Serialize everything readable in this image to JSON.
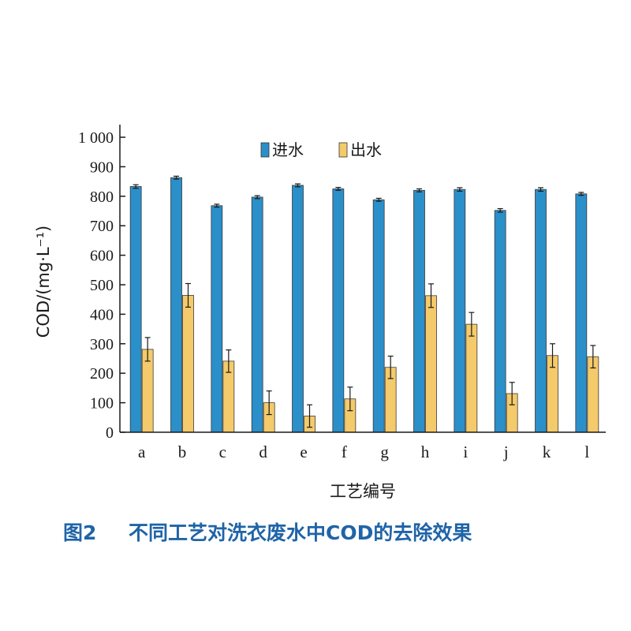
{
  "chart_data": {
    "type": "bar",
    "categories": [
      "a",
      "b",
      "c",
      "d",
      "e",
      "f",
      "g",
      "h",
      "i",
      "j",
      "k",
      "l"
    ],
    "series": [
      {
        "name": "进水",
        "color": "#2b8fc9",
        "values": [
          833,
          863,
          768,
          797,
          837,
          825,
          788,
          820,
          823,
          752,
          823,
          808
        ],
        "errors": [
          6,
          5,
          5,
          5,
          5,
          5,
          5,
          5,
          6,
          6,
          6,
          5
        ]
      },
      {
        "name": "出水",
        "color": "#f4ca6a",
        "values": [
          281,
          464,
          241,
          100,
          55,
          113,
          220,
          463,
          366,
          131,
          260,
          256
        ],
        "errors": [
          40,
          40,
          38,
          40,
          38,
          40,
          38,
          40,
          40,
          38,
          40,
          38
        ]
      }
    ],
    "y_ticks": [
      "0",
      "100",
      "200",
      "300",
      "400",
      "500",
      "600",
      "700",
      "800",
      "900",
      "1 000"
    ],
    "ylim": [
      0,
      1000
    ],
    "ylabel": "COD/(mg·L⁻¹)",
    "xlabel": "工艺编号",
    "legend_position": "top-center",
    "grid": false
  },
  "caption": {
    "label": "图2",
    "text": "不同工艺对洗衣废水中COD的去除效果"
  }
}
